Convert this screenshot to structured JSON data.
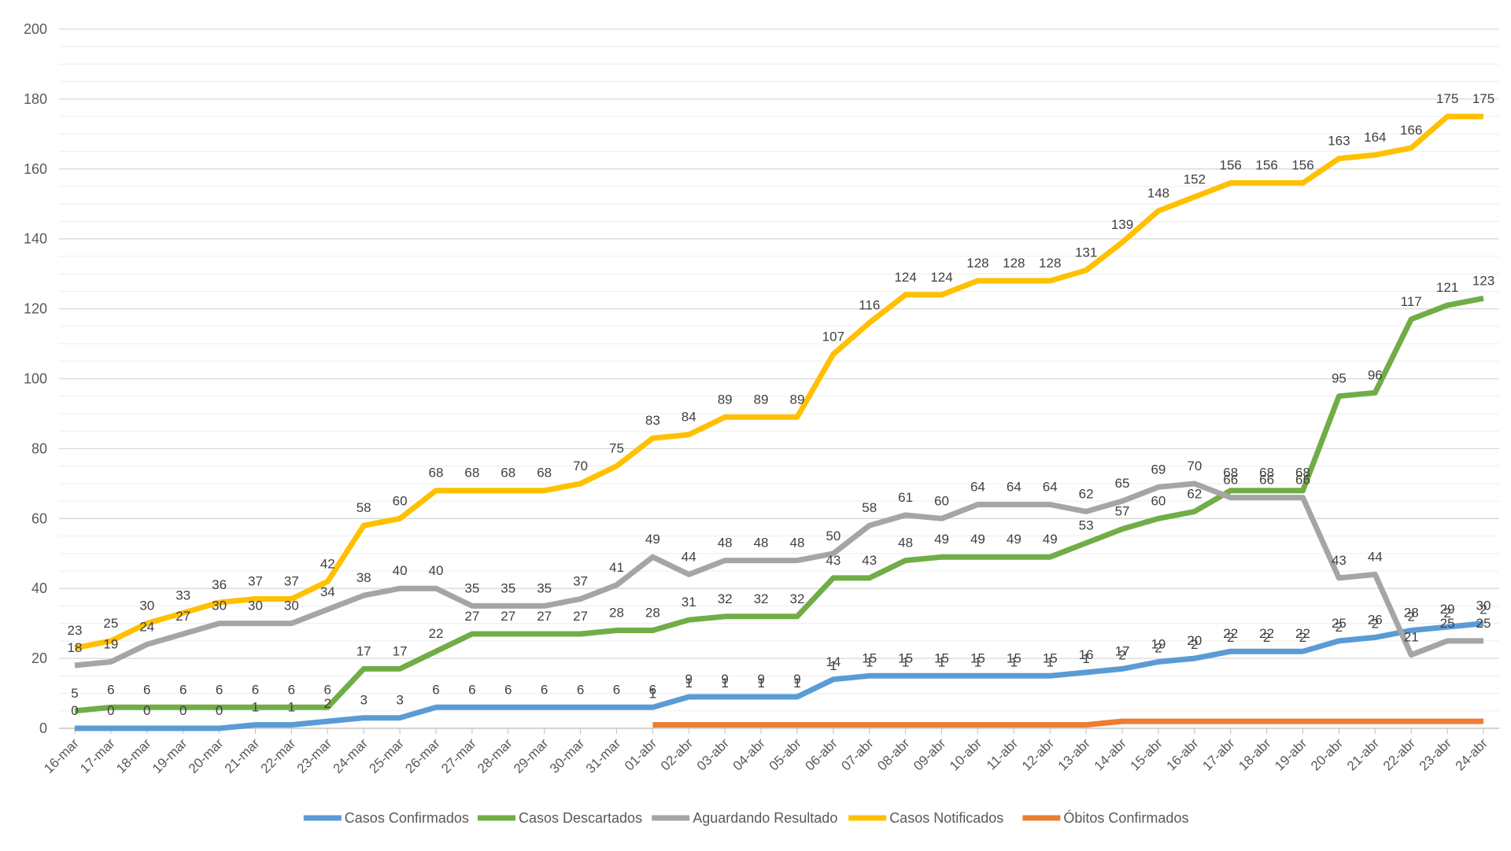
{
  "chart_data": {
    "type": "line",
    "title": "",
    "xlabel": "",
    "ylabel": "",
    "ylim": [
      0,
      200
    ],
    "yticks": [
      0,
      20,
      40,
      60,
      80,
      100,
      120,
      140,
      160,
      180,
      200
    ],
    "grid": "horizontal major and minor lines",
    "legend_position": "bottom",
    "categories": [
      "16-mar",
      "17-mar",
      "18-mar",
      "19-mar",
      "20-mar",
      "21-mar",
      "22-mar",
      "23-mar",
      "24-mar",
      "25-mar",
      "26-mar",
      "27-mar",
      "28-mar",
      "29-mar",
      "30-mar",
      "31-mar",
      "01-abr",
      "02-abr",
      "03-abr",
      "04-abr",
      "05-abr",
      "06-abr",
      "07-abr",
      "08-abr",
      "09-abr",
      "10-abr",
      "11-abr",
      "12-abr",
      "13-abr",
      "14-abr",
      "15-abr",
      "16-abr",
      "17-abr",
      "18-abr",
      "19-abr",
      "20-abr",
      "21-abr",
      "22-abr",
      "23-abr",
      "24-abr"
    ],
    "series": [
      {
        "name": "Casos Confirmados",
        "color": "#5B9BD5",
        "values": [
          0,
          0,
          0,
          0,
          0,
          1,
          1,
          2,
          3,
          3,
          6,
          6,
          6,
          6,
          6,
          6,
          6,
          9,
          9,
          9,
          9,
          14,
          15,
          15,
          15,
          15,
          15,
          15,
          16,
          17,
          19,
          20,
          22,
          22,
          22,
          25,
          26,
          28,
          29,
          30
        ]
      },
      {
        "name": "Casos Descartados",
        "color": "#70AD47",
        "values": [
          5,
          6,
          6,
          6,
          6,
          6,
          6,
          6,
          17,
          17,
          22,
          27,
          27,
          27,
          27,
          28,
          28,
          31,
          32,
          32,
          32,
          43,
          43,
          48,
          49,
          49,
          49,
          49,
          53,
          57,
          60,
          62,
          68,
          68,
          68,
          95,
          96,
          117,
          121,
          123
        ]
      },
      {
        "name": "Aguardando Resultado",
        "color": "#A5A5A5",
        "values": [
          18,
          19,
          24,
          27,
          30,
          30,
          30,
          34,
          38,
          40,
          40,
          35,
          35,
          35,
          37,
          41,
          49,
          44,
          48,
          48,
          48,
          50,
          58,
          61,
          60,
          64,
          64,
          64,
          62,
          65,
          69,
          70,
          66,
          66,
          66,
          43,
          44,
          21,
          25,
          25
        ]
      },
      {
        "name": "Casos Notificados",
        "color": "#FFC000",
        "values": [
          23,
          25,
          30,
          33,
          36,
          37,
          37,
          42,
          58,
          60,
          68,
          68,
          68,
          68,
          70,
          75,
          83,
          84,
          89,
          89,
          89,
          107,
          116,
          124,
          124,
          128,
          128,
          128,
          131,
          139,
          148,
          152,
          156,
          156,
          156,
          163,
          164,
          166,
          175,
          175
        ]
      },
      {
        "name": "Óbitos Confirmados",
        "color": "#ED7D31",
        "values": [
          null,
          null,
          null,
          null,
          null,
          null,
          null,
          null,
          null,
          null,
          null,
          null,
          null,
          null,
          null,
          null,
          1,
          1,
          1,
          1,
          1,
          1,
          1,
          1,
          1,
          1,
          1,
          1,
          1,
          2,
          2,
          2,
          2,
          2,
          2,
          2,
          2,
          2,
          2,
          2
        ]
      }
    ]
  }
}
